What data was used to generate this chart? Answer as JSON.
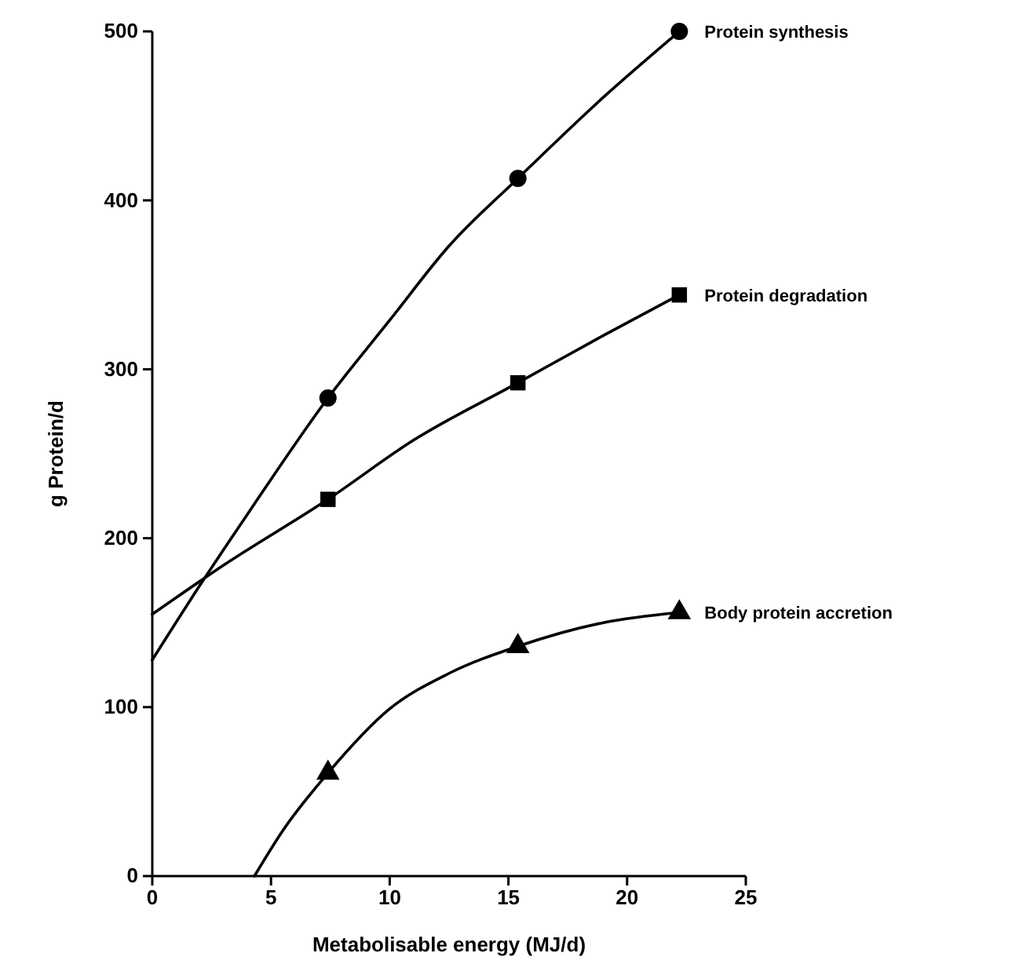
{
  "chart_data": {
    "type": "line",
    "xlabel": "Metabolisable energy (MJ/d)",
    "ylabel": "g Protein/d",
    "xlim": [
      0,
      25
    ],
    "xticks": [
      0,
      5,
      10,
      15,
      20,
      25
    ],
    "ylim": [
      0,
      500
    ],
    "yticks": [
      0,
      100,
      200,
      300,
      400,
      500
    ],
    "grid": false,
    "series": [
      {
        "color": "#000000",
        "marker": "none",
        "x": [
          0,
          2,
          4,
          7.4,
          10,
          12.5,
          15.4,
          19,
          22.2
        ],
        "values": [
          128,
          172,
          214,
          283,
          329,
          373,
          413,
          461,
          500
        ]
      },
      {
        "color": "#000000",
        "marker": "none",
        "x": [
          0,
          3,
          7.4,
          11,
          15.4,
          19,
          22.2
        ],
        "values": [
          155,
          184,
          223,
          258,
          292,
          320,
          344
        ]
      },
      {
        "color": "#000000",
        "marker": "none",
        "x": [
          4.3,
          5.5,
          7.4,
          10,
          12.5,
          15.4,
          19,
          22.2
        ],
        "values": [
          0,
          27,
          61,
          99,
          120,
          136,
          150,
          156
        ]
      },
      {
        "type": "scatter",
        "name": "Protein synthesis",
        "color": "#000000",
        "marker": "circle",
        "x": [
          7.4,
          15.4,
          22.2
        ],
        "values": [
          283,
          413,
          500
        ]
      },
      {
        "type": "scatter",
        "name": "Protein degradation",
        "color": "#000000",
        "marker": "square",
        "x": [
          7.4,
          15.4,
          22.2
        ],
        "values": [
          223,
          292,
          344
        ]
      },
      {
        "type": "scatter",
        "name": "Body protein accretion",
        "color": "#000000",
        "marker": "triangle",
        "x": [
          7.4,
          15.4,
          22.2
        ],
        "values": [
          61,
          136,
          156
        ]
      }
    ]
  }
}
